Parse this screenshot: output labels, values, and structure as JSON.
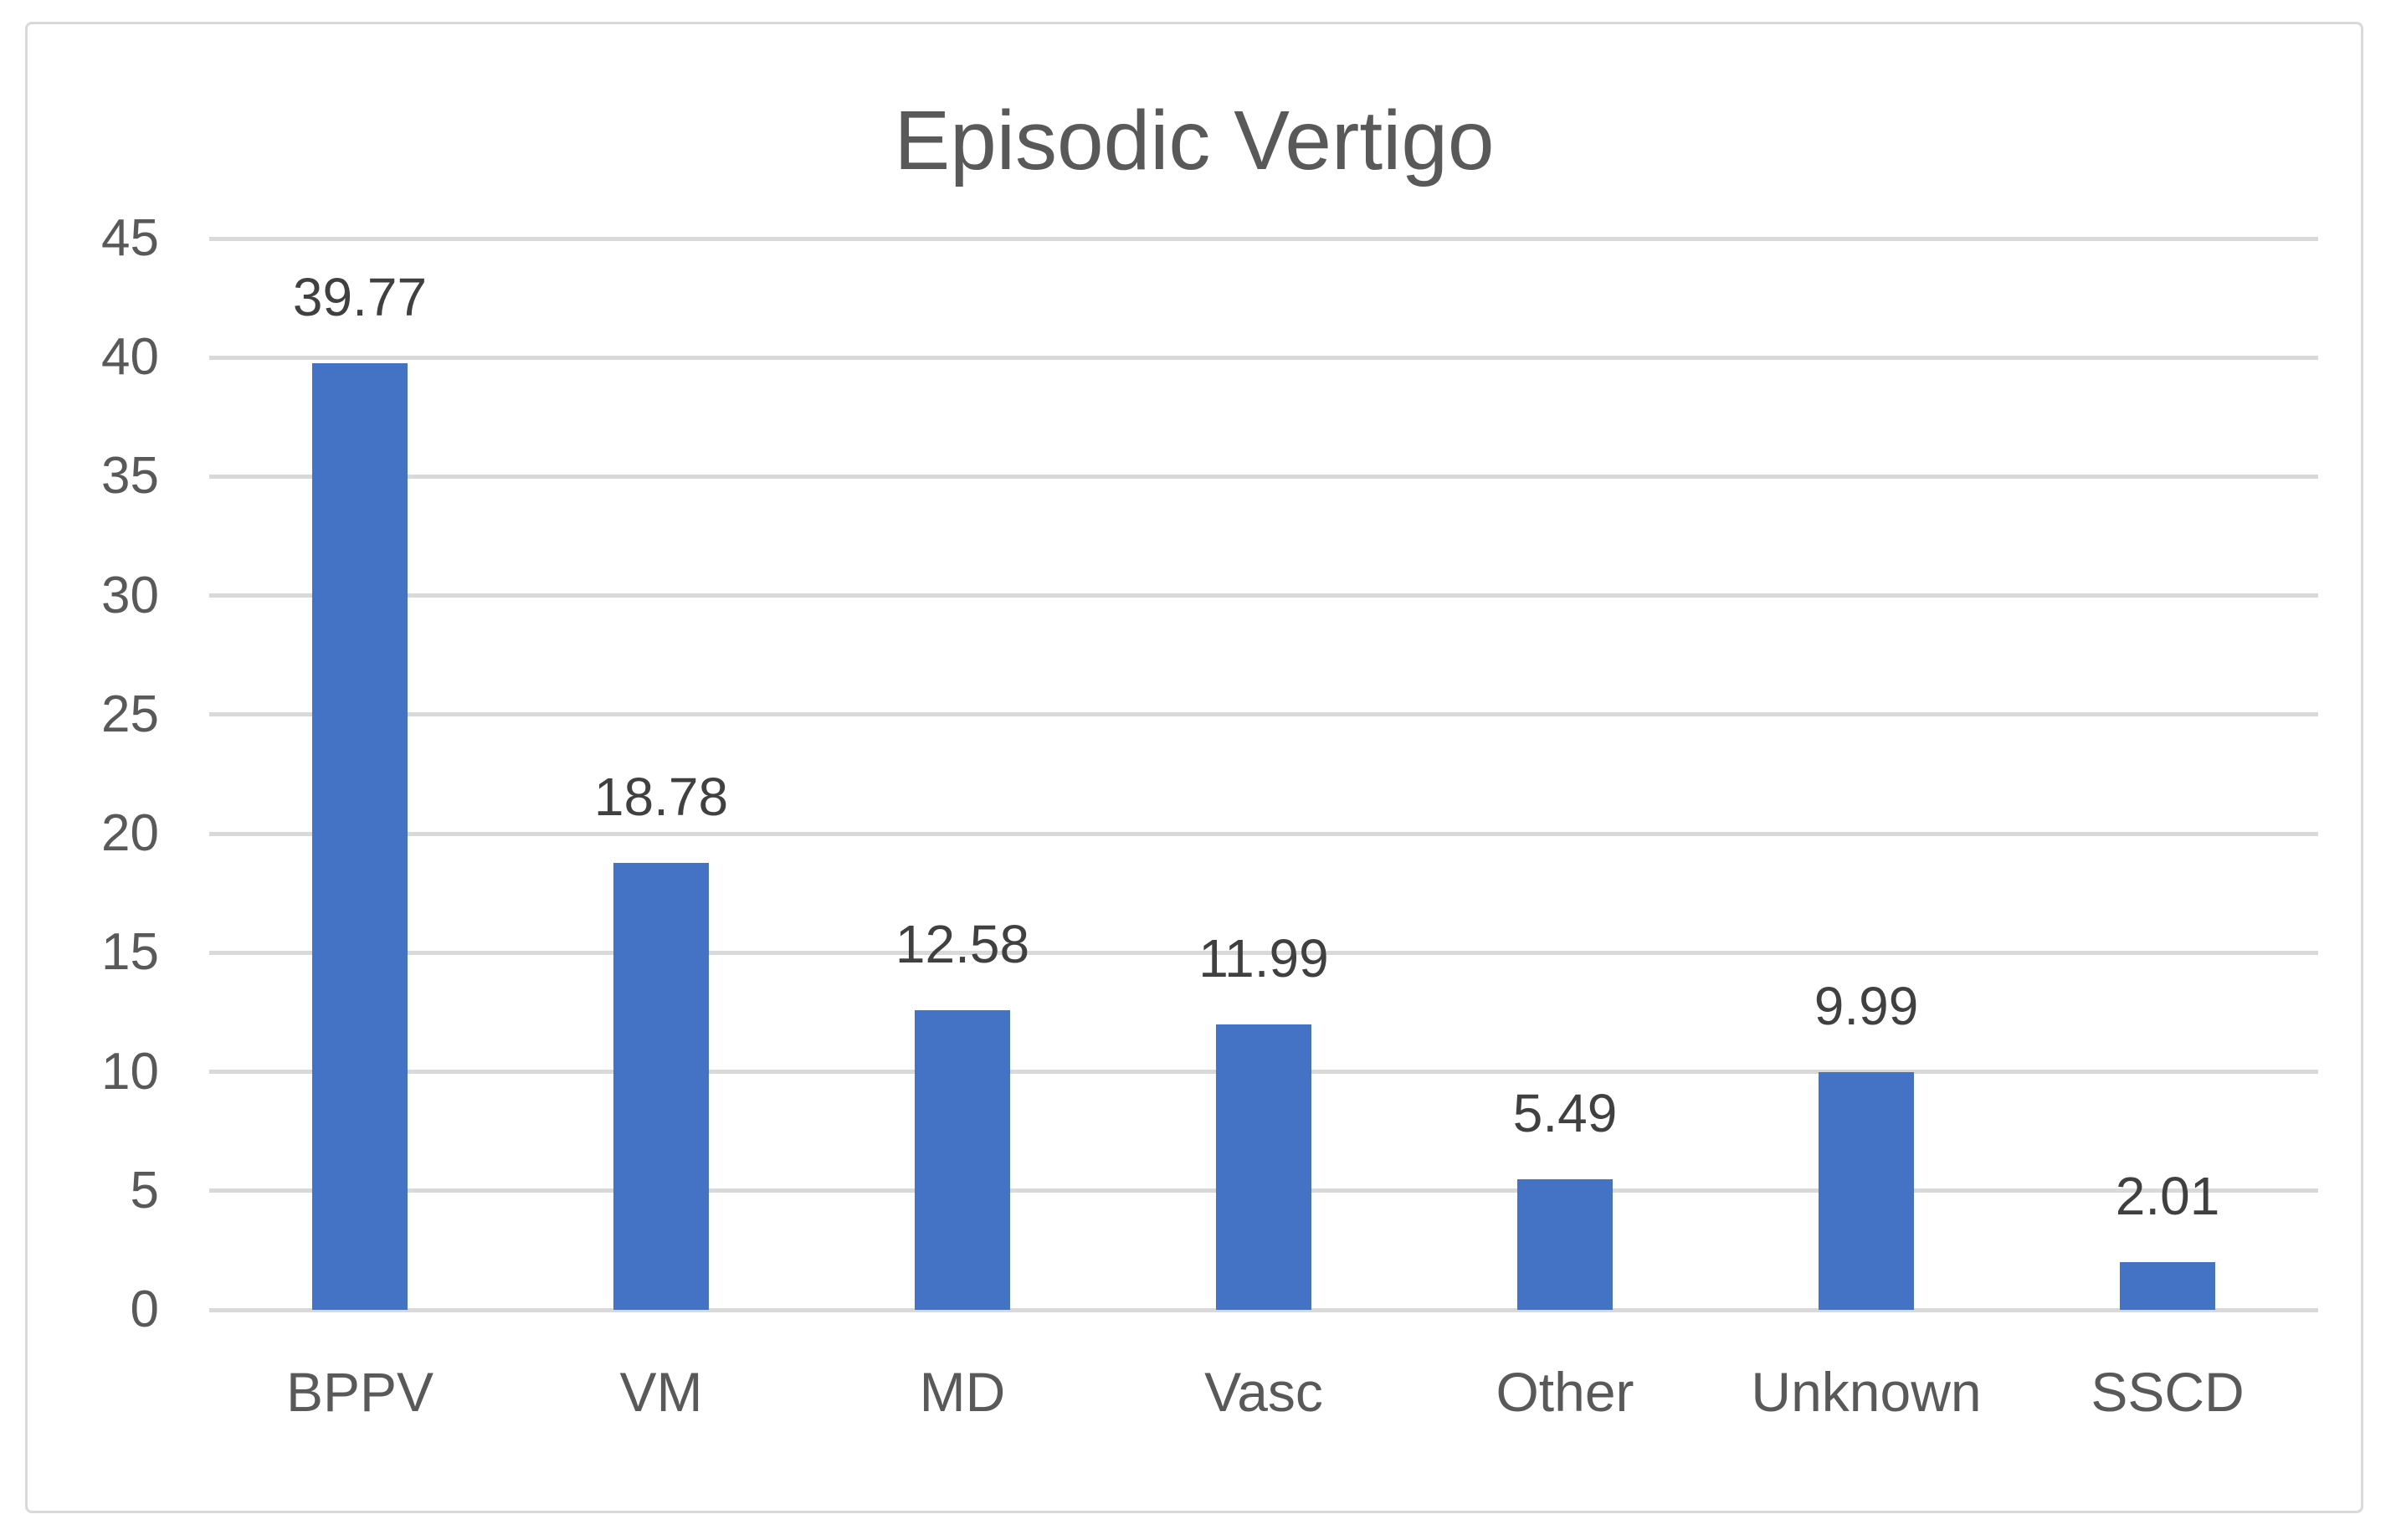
{
  "chart_data": {
    "type": "bar",
    "title": "Episodic Vertigo",
    "categories": [
      "BPPV",
      "VM",
      "MD",
      "Vasc",
      "Other",
      "Unknown",
      "SSCD"
    ],
    "values": [
      39.77,
      18.78,
      12.58,
      11.99,
      5.49,
      9.99,
      2.01
    ],
    "data_labels": [
      "39.77",
      "18.78",
      "12.58",
      "11.99",
      "5.49",
      "9.99",
      "2.01"
    ],
    "xlabel": "",
    "ylabel": "",
    "ylim": [
      0,
      45
    ],
    "yticks": [
      0,
      5,
      10,
      15,
      20,
      25,
      30,
      35,
      40,
      45
    ],
    "grid": "horizontal",
    "legend": "none",
    "series_name": "Episodic Vertigo",
    "colors": {
      "bar": "#4472C4",
      "gridline": "#D9D9D9",
      "axis_line": "#D9D9D9",
      "tick_text": "#595959",
      "data_label_text": "#404040",
      "title_text": "#595959",
      "frame_border": "#D9D9D9",
      "background": "#FFFFFF"
    }
  }
}
